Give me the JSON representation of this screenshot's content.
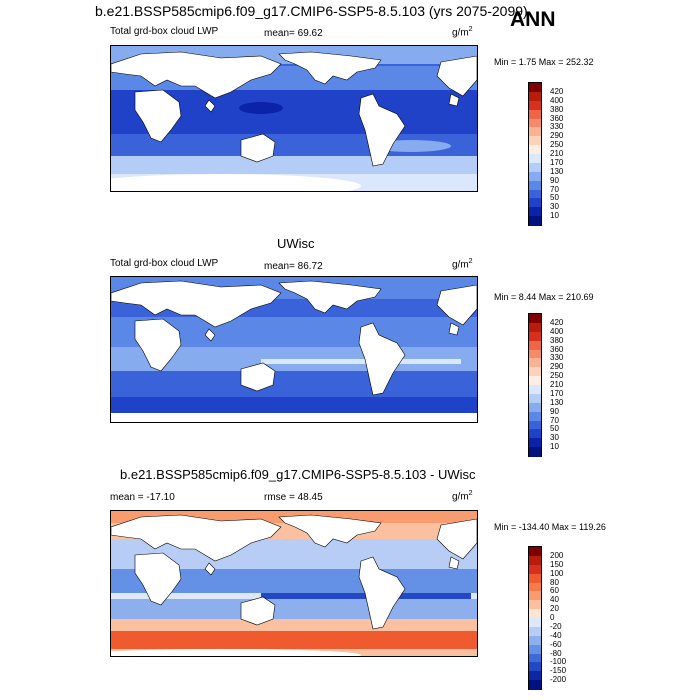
{
  "header": {
    "top_title": "b.e21.BSSP585cmip6.f09_g17.CMIP6-SSP5-8.5.103 (yrs 2075-2099)",
    "season": "ANN"
  },
  "panels": [
    {
      "title": "",
      "left_label": "Total grd-box cloud LWP",
      "mid_label": "mean=  69.62",
      "unit": "g/m",
      "unit_exp": "2",
      "minmax": "Min =   1.75 Max = 252.32",
      "colorbar": {
        "labels": [
          "420",
          "400",
          "380",
          "360",
          "330",
          "290",
          "250",
          "210",
          "170",
          "130",
          "90",
          "70",
          "50",
          "30",
          "10"
        ],
        "colors": [
          "#7f0000",
          "#b71c0c",
          "#d7301f",
          "#ef6548",
          "#f48b6a",
          "#f8b394",
          "#fbd3bd",
          "#fdeee4",
          "#dbe7fb",
          "#b4cdf7",
          "#86abef",
          "#5b87e6",
          "#3a63d9",
          "#1f42c8",
          "#0a23a8",
          "#00127f"
        ]
      }
    },
    {
      "title": "UWisc",
      "left_label": "Total grd-box cloud LWP",
      "mid_label": "mean=  86.72",
      "unit": "g/m",
      "unit_exp": "2",
      "minmax": "Min =   8.44 Max = 210.69",
      "colorbar": {
        "labels": [
          "420",
          "400",
          "380",
          "360",
          "330",
          "290",
          "250",
          "210",
          "170",
          "130",
          "90",
          "70",
          "50",
          "30",
          "10"
        ],
        "colors": [
          "#7f0000",
          "#b71c0c",
          "#d7301f",
          "#ef6548",
          "#f48b6a",
          "#f8b394",
          "#fbd3bd",
          "#fdeee4",
          "#dbe7fb",
          "#b4cdf7",
          "#86abef",
          "#5b87e6",
          "#3a63d9",
          "#1f42c8",
          "#0a23a8",
          "#00127f"
        ]
      }
    },
    {
      "title": "b.e21.BSSP585cmip6.f09_g17.CMIP6-SSP5-8.5.103 - UWisc",
      "left_label": "mean = -17.10",
      "mid_label": "rmse =  48.45",
      "unit": "g/m",
      "unit_exp": "2",
      "minmax": "Min = -134.40 Max = 119.26",
      "colorbar": {
        "labels": [
          "200",
          "150",
          "100",
          "80",
          "60",
          "40",
          "20",
          "0",
          "-20",
          "-40",
          "-60",
          "-80",
          "-100",
          "-150",
          "-200"
        ],
        "colors": [
          "#7f0000",
          "#b71c0c",
          "#d7301f",
          "#ef5a2e",
          "#f47b4b",
          "#f89c70",
          "#fbc0a0",
          "#fde3d3",
          "#dde8fb",
          "#b7cdf6",
          "#8dafee",
          "#6490e5",
          "#3f6bd8",
          "#2448c4",
          "#0e27a3",
          "#00127f"
        ]
      }
    }
  ]
}
